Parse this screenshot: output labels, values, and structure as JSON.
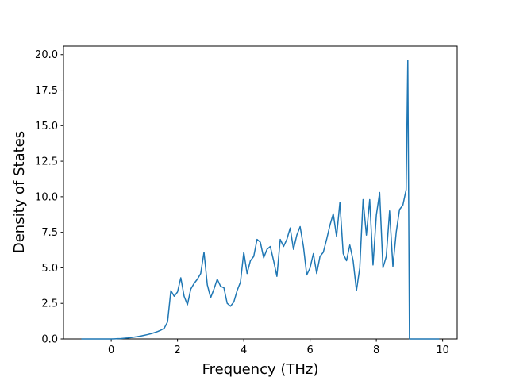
{
  "chart_data": {
    "type": "line",
    "x_label": "Frequency (THz)",
    "y_label": "Density of States",
    "color": "#1f77b4",
    "x": [
      -0.9,
      -0.8,
      -0.7,
      -0.6,
      -0.5,
      -0.4,
      -0.3,
      -0.2,
      -0.1,
      0.0,
      0.1,
      0.2,
      0.3,
      0.4,
      0.5,
      0.6,
      0.7,
      0.8,
      0.9,
      1.0,
      1.1,
      1.2,
      1.3,
      1.4,
      1.5,
      1.6,
      1.7,
      1.8,
      1.9,
      2.0,
      2.1,
      2.2,
      2.3,
      2.4,
      2.5,
      2.6,
      2.7,
      2.8,
      2.9,
      3.0,
      3.1,
      3.2,
      3.3,
      3.4,
      3.5,
      3.6,
      3.7,
      3.8,
      3.9,
      4.0,
      4.1,
      4.2,
      4.3,
      4.4,
      4.5,
      4.6,
      4.7,
      4.8,
      4.9,
      5.0,
      5.1,
      5.2,
      5.3,
      5.4,
      5.5,
      5.6,
      5.7,
      5.8,
      5.9,
      6.0,
      6.1,
      6.2,
      6.3,
      6.4,
      6.5,
      6.6,
      6.7,
      6.8,
      6.9,
      7.0,
      7.1,
      7.2,
      7.3,
      7.4,
      7.5,
      7.6,
      7.7,
      7.8,
      7.9,
      8.0,
      8.1,
      8.2,
      8.3,
      8.4,
      8.5,
      8.6,
      8.7,
      8.8,
      8.9,
      8.95,
      9.0,
      9.1,
      9.2,
      9.3,
      9.4,
      9.5,
      9.6,
      9.7,
      9.8,
      9.9
    ],
    "values": [
      0,
      0,
      0,
      0,
      0,
      0,
      0,
      0,
      0,
      0,
      0.01,
      0.02,
      0.03,
      0.05,
      0.07,
      0.1,
      0.13,
      0.17,
      0.21,
      0.26,
      0.31,
      0.37,
      0.44,
      0.52,
      0.62,
      0.75,
      1.2,
      3.4,
      3.0,
      3.3,
      4.3,
      3.0,
      2.4,
      3.5,
      3.9,
      4.2,
      4.6,
      6.1,
      3.8,
      2.9,
      3.5,
      4.2,
      3.7,
      3.6,
      2.5,
      2.3,
      2.6,
      3.4,
      4.0,
      6.1,
      4.6,
      5.5,
      5.8,
      7.0,
      6.8,
      5.7,
      6.3,
      6.5,
      5.5,
      4.4,
      7.0,
      6.5,
      7.0,
      7.8,
      6.3,
      7.3,
      7.9,
      6.5,
      4.5,
      5.0,
      6.0,
      4.6,
      5.8,
      6.1,
      7.0,
      8.0,
      8.8,
      7.2,
      9.6,
      6.0,
      5.5,
      6.6,
      5.5,
      3.4,
      5.0,
      9.8,
      7.3,
      9.8,
      5.2,
      8.7,
      10.3,
      5.0,
      5.8,
      9.0,
      5.1,
      7.5,
      9.1,
      9.4,
      10.5,
      19.6,
      0,
      0,
      0,
      0,
      0,
      0,
      0,
      0,
      0,
      0
    ],
    "xlim": [
      -1.44,
      10.44
    ],
    "ylim": [
      0,
      20.6
    ],
    "xticks": [
      0,
      2,
      4,
      6,
      8,
      10
    ],
    "yticks": [
      {
        "value": 0,
        "label": "0.0"
      },
      2.5,
      {
        "value": 5,
        "label": "5.0"
      },
      7.5,
      {
        "value": 10,
        "label": "10.0"
      },
      12.5,
      {
        "value": 15,
        "label": "15.0"
      },
      17.5,
      {
        "value": 20,
        "label": "20.0"
      }
    ]
  }
}
